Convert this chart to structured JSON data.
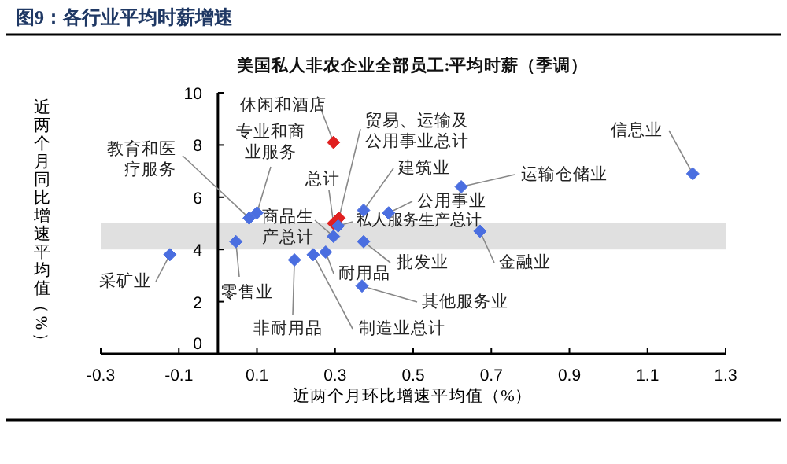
{
  "chart_data": {
    "type": "scatter",
    "title": "图9：各行业平均时薪增速",
    "subtitle": "美国私人非农企业全部员工:平均时薪（季调）",
    "xlabel": "近两个月环比增速平均值（%）",
    "ylabel": "近两个月同比增速平均值（%）",
    "x": [
      0.296,
      0.1,
      0.08,
      0.31,
      0.296,
      0.373,
      0.623,
      1.216,
      0.437,
      0.296,
      0.308,
      -0.123,
      0.046,
      0.373,
      0.671,
      0.276,
      0.369,
      0.196,
      0.244
    ],
    "values": [
      8.1,
      5.4,
      5.2,
      5.2,
      5.0,
      5.5,
      6.4,
      6.9,
      5.4,
      4.5,
      4.9,
      3.8,
      4.3,
      4.3,
      4.7,
      3.9,
      2.6,
      3.6,
      3.8
    ],
    "colors": [
      "#e02020",
      "#4a6ee0",
      "#4a6ee0",
      "#e02020",
      "#e02020",
      "#4a6ee0",
      "#4a6ee0",
      "#4a6ee0",
      "#4a6ee0",
      "#4a6ee0",
      "#4a6ee0",
      "#4a6ee0",
      "#4a6ee0",
      "#4a6ee0",
      "#4a6ee0",
      "#4a6ee0",
      "#4a6ee0",
      "#4a6ee0",
      "#4a6ee0"
    ],
    "marker": "diamond",
    "grid": false,
    "xlim": [
      -0.3,
      1.3
    ],
    "ylim": [
      0,
      10
    ],
    "xticks": [
      -0.3,
      -0.1,
      0.1,
      0.3,
      0.5,
      0.7,
      0.9,
      1.1,
      1.3
    ],
    "yticks": [
      0,
      2,
      4,
      6,
      8,
      10
    ],
    "bands": [
      {
        "axis": "y",
        "from": 4,
        "to": 5,
        "color": "#e0e0e0"
      }
    ],
    "annotations": [
      {
        "text": "休闲和酒店",
        "x": 0.296,
        "y": 8.1
      },
      {
        "text": "专业和商业服务",
        "x": 0.1,
        "y": 5.4
      },
      {
        "text": "教育和医疗服务",
        "x": 0.08,
        "y": 5.2
      },
      {
        "text": "贸易、运输及公用事业总计",
        "x": 0.31,
        "y": 5.2
      },
      {
        "text": "总计",
        "x": 0.296,
        "y": 5.0
      },
      {
        "text": "建筑业",
        "x": 0.373,
        "y": 5.5
      },
      {
        "text": "运输仓储业",
        "x": 0.623,
        "y": 6.4
      },
      {
        "text": "信息业",
        "x": 1.216,
        "y": 6.9
      },
      {
        "text": "公用事业",
        "x": 0.437,
        "y": 5.4
      },
      {
        "text": "商品生产总计",
        "x": 0.296,
        "y": 4.5
      },
      {
        "text": "私人服务生产总计",
        "x": 0.308,
        "y": 4.9
      },
      {
        "text": "采矿业",
        "x": -0.123,
        "y": 3.8
      },
      {
        "text": "零售业",
        "x": 0.046,
        "y": 4.3
      },
      {
        "text": "批发业",
        "x": 0.373,
        "y": 4.3
      },
      {
        "text": "金融业",
        "x": 0.671,
        "y": 4.7
      },
      {
        "text": "耐用品",
        "x": 0.276,
        "y": 3.9
      },
      {
        "text": "其他服务业",
        "x": 0.369,
        "y": 2.6
      },
      {
        "text": "非耐用品",
        "x": 0.196,
        "y": 3.6
      },
      {
        "text": "制造业总计",
        "x": 0.244,
        "y": 3.8
      }
    ]
  }
}
